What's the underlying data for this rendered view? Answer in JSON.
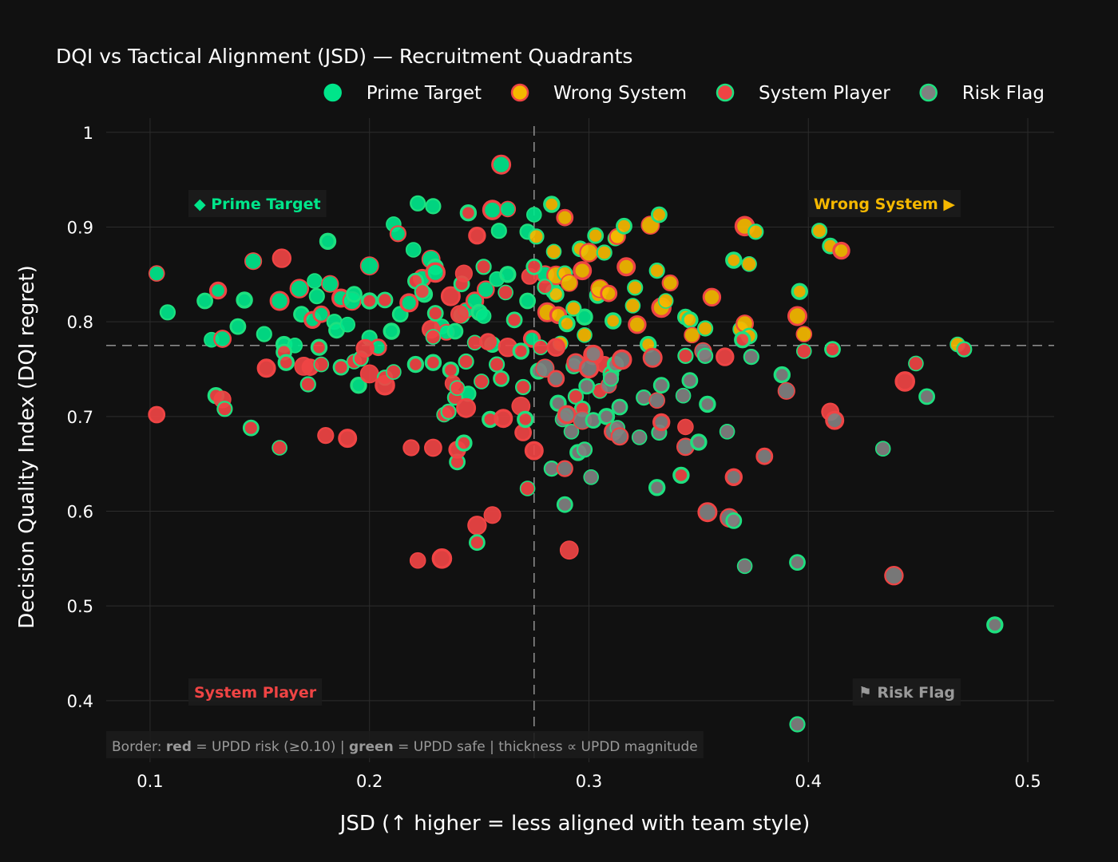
{
  "chart_data": {
    "type": "scatter",
    "title": "DQI vs Tactical Alignment (JSD) — Recruitment Quadrants",
    "xlabel": "JSD  (↑ higher = less aligned with team style)",
    "ylabel": "Decision Quality Index (DQI regret)",
    "xlim": [
      0.08,
      0.512
    ],
    "ylim": [
      0.335,
      1.015
    ],
    "xticks": [
      0.1,
      0.2,
      0.3,
      0.4,
      0.5
    ],
    "xtick_labels": [
      "0.1",
      "0.2",
      "0.3",
      "0.4",
      "0.5"
    ],
    "yticks": [
      0.4,
      0.5,
      0.6,
      0.7,
      0.8,
      0.9,
      1.0
    ],
    "ytick_labels": [
      "0.4",
      "0.5",
      "0.6",
      "0.7",
      "0.8",
      "0.9",
      "1"
    ],
    "grid": true,
    "legend_position": "top-right",
    "thresholds": {
      "x": 0.275,
      "y": 0.775
    },
    "quadrant_labels": [
      {
        "text": "◆ Prime Target",
        "color": "#00e58a",
        "position": "top-left"
      },
      {
        "text": "Wrong System ▶",
        "color": "#f5b800",
        "position": "top-right"
      },
      {
        "text": "System Player",
        "color": "#ef4444",
        "position": "bottom-left"
      },
      {
        "text": "⚑ Risk Flag",
        "color": "#9a9a9a",
        "position": "bottom-right"
      }
    ],
    "footnote": {
      "prefix": "Border: ",
      "red_word": "red",
      "middle": " = UPDD risk (≥0.10) | ",
      "green_word": "green",
      "suffix": " = UPDD safe | thickness ∝ UPDD magnitude"
    },
    "colors": {
      "prime": "#00e58a",
      "wrong": "#f5b800",
      "system": "#ef4444",
      "risk": "#808080",
      "border_risk": "#ef4444",
      "border_safe": "#1ee07f"
    },
    "series": [
      {
        "name": "Prime Target",
        "fill": "#00e58a",
        "points": [
          [
            0.103,
            0.851
          ],
          [
            0.108,
            0.81
          ],
          [
            0.125,
            0.822
          ],
          [
            0.131,
            0.833
          ],
          [
            0.128,
            0.781
          ],
          [
            0.133,
            0.782
          ],
          [
            0.14,
            0.795
          ],
          [
            0.143,
            0.823
          ],
          [
            0.147,
            0.864
          ],
          [
            0.152,
            0.787
          ],
          [
            0.159,
            0.822
          ],
          [
            0.161,
            0.776
          ],
          [
            0.166,
            0.775
          ],
          [
            0.168,
            0.835
          ],
          [
            0.169,
            0.808
          ],
          [
            0.174,
            0.802
          ],
          [
            0.175,
            0.843
          ],
          [
            0.176,
            0.827
          ],
          [
            0.178,
            0.808
          ],
          [
            0.181,
            0.885
          ],
          [
            0.182,
            0.84
          ],
          [
            0.184,
            0.8
          ],
          [
            0.185,
            0.791
          ],
          [
            0.187,
            0.825
          ],
          [
            0.19,
            0.797
          ],
          [
            0.192,
            0.822
          ],
          [
            0.193,
            0.829
          ],
          [
            0.195,
            0.733
          ],
          [
            0.2,
            0.859
          ],
          [
            0.2,
            0.783
          ],
          [
            0.204,
            0.773
          ],
          [
            0.21,
            0.79
          ],
          [
            0.211,
            0.903
          ],
          [
            0.213,
            0.893
          ],
          [
            0.214,
            0.808
          ],
          [
            0.218,
            0.82
          ],
          [
            0.22,
            0.876
          ],
          [
            0.222,
            0.925
          ],
          [
            0.224,
            0.846
          ],
          [
            0.225,
            0.829
          ],
          [
            0.228,
            0.866
          ],
          [
            0.229,
            0.922
          ],
          [
            0.23,
            0.858
          ],
          [
            0.23,
            0.852
          ],
          [
            0.233,
            0.795
          ],
          [
            0.235,
            0.789
          ],
          [
            0.239,
            0.79
          ],
          [
            0.242,
            0.807
          ],
          [
            0.244,
            0.812
          ],
          [
            0.245,
            0.724
          ],
          [
            0.248,
            0.822
          ],
          [
            0.25,
            0.81
          ],
          [
            0.252,
            0.806
          ],
          [
            0.253,
            0.834
          ],
          [
            0.256,
            0.776
          ],
          [
            0.256,
            0.918
          ],
          [
            0.258,
            0.845
          ],
          [
            0.259,
            0.896
          ],
          [
            0.26,
            0.966
          ],
          [
            0.263,
            0.85
          ],
          [
            0.263,
            0.919
          ],
          [
            0.272,
            0.895
          ],
          [
            0.272,
            0.822
          ],
          [
            0.274,
            0.782
          ],
          [
            0.275,
            0.913
          ],
          [
            0.28,
            0.85
          ],
          [
            0.284,
            0.832
          ],
          [
            0.298,
            0.805
          ]
        ]
      },
      {
        "name": "Wrong System",
        "fill": "#f5b800",
        "points": [
          [
            0.276,
            0.89
          ],
          [
            0.281,
            0.81
          ],
          [
            0.283,
            0.924
          ],
          [
            0.284,
            0.874
          ],
          [
            0.285,
            0.849
          ],
          [
            0.285,
            0.829
          ],
          [
            0.286,
            0.807
          ],
          [
            0.287,
            0.777
          ],
          [
            0.289,
            0.851
          ],
          [
            0.289,
            0.91
          ],
          [
            0.29,
            0.798
          ],
          [
            0.291,
            0.841
          ],
          [
            0.293,
            0.814
          ],
          [
            0.296,
            0.877
          ],
          [
            0.297,
            0.854
          ],
          [
            0.298,
            0.786
          ],
          [
            0.3,
            0.873
          ],
          [
            0.303,
            0.891
          ],
          [
            0.304,
            0.828
          ],
          [
            0.305,
            0.835
          ],
          [
            0.307,
            0.873
          ],
          [
            0.309,
            0.83
          ],
          [
            0.311,
            0.801
          ],
          [
            0.312,
            0.888
          ],
          [
            0.313,
            0.89
          ],
          [
            0.316,
            0.901
          ],
          [
            0.317,
            0.858
          ],
          [
            0.32,
            0.817
          ],
          [
            0.321,
            0.836
          ],
          [
            0.322,
            0.797
          ],
          [
            0.327,
            0.776
          ],
          [
            0.328,
            0.902
          ],
          [
            0.331,
            0.854
          ],
          [
            0.332,
            0.913
          ],
          [
            0.333,
            0.815
          ],
          [
            0.335,
            0.822
          ],
          [
            0.337,
            0.841
          ],
          [
            0.344,
            0.805
          ],
          [
            0.346,
            0.802
          ],
          [
            0.347,
            0.786
          ],
          [
            0.353,
            0.793
          ],
          [
            0.356,
            0.826
          ],
          [
            0.366,
            0.865
          ],
          [
            0.369,
            0.792
          ],
          [
            0.371,
            0.798
          ],
          [
            0.373,
            0.785
          ],
          [
            0.371,
            0.901
          ],
          [
            0.373,
            0.861
          ],
          [
            0.376,
            0.895
          ],
          [
            0.395,
            0.806
          ],
          [
            0.396,
            0.832
          ],
          [
            0.398,
            0.787
          ],
          [
            0.405,
            0.896
          ],
          [
            0.41,
            0.88
          ],
          [
            0.415,
            0.875
          ],
          [
            0.468,
            0.776
          ]
        ]
      },
      {
        "name": "System Player",
        "fill": "#ef4444",
        "points": [
          [
            0.103,
            0.702
          ],
          [
            0.13,
            0.722
          ],
          [
            0.133,
            0.718
          ],
          [
            0.134,
            0.708
          ],
          [
            0.146,
            0.688
          ],
          [
            0.153,
            0.751
          ],
          [
            0.159,
            0.667
          ],
          [
            0.16,
            0.867
          ],
          [
            0.161,
            0.768
          ],
          [
            0.162,
            0.757
          ],
          [
            0.17,
            0.753
          ],
          [
            0.172,
            0.734
          ],
          [
            0.173,
            0.752
          ],
          [
            0.177,
            0.773
          ],
          [
            0.178,
            0.755
          ],
          [
            0.18,
            0.68
          ],
          [
            0.187,
            0.752
          ],
          [
            0.19,
            0.677
          ],
          [
            0.193,
            0.758
          ],
          [
            0.196,
            0.761
          ],
          [
            0.198,
            0.772
          ],
          [
            0.2,
            0.822
          ],
          [
            0.2,
            0.745
          ],
          [
            0.207,
            0.741
          ],
          [
            0.207,
            0.823
          ],
          [
            0.207,
            0.733
          ],
          [
            0.211,
            0.747
          ],
          [
            0.219,
            0.667
          ],
          [
            0.221,
            0.843
          ],
          [
            0.221,
            0.755
          ],
          [
            0.222,
            0.548
          ],
          [
            0.224,
            0.832
          ],
          [
            0.228,
            0.792
          ],
          [
            0.229,
            0.757
          ],
          [
            0.229,
            0.784
          ],
          [
            0.229,
            0.667
          ],
          [
            0.23,
            0.809
          ],
          [
            0.233,
            0.55
          ],
          [
            0.234,
            0.702
          ],
          [
            0.236,
            0.705
          ],
          [
            0.237,
            0.827
          ],
          [
            0.237,
            0.749
          ],
          [
            0.238,
            0.735
          ],
          [
            0.239,
            0.72
          ],
          [
            0.24,
            0.652
          ],
          [
            0.24,
            0.665
          ],
          [
            0.24,
            0.73
          ],
          [
            0.241,
            0.808
          ],
          [
            0.242,
            0.84
          ],
          [
            0.243,
            0.672
          ],
          [
            0.243,
            0.851
          ],
          [
            0.244,
            0.758
          ],
          [
            0.244,
            0.709
          ],
          [
            0.245,
            0.915
          ],
          [
            0.248,
            0.778
          ],
          [
            0.249,
            0.585
          ],
          [
            0.249,
            0.567
          ],
          [
            0.249,
            0.891
          ],
          [
            0.251,
            0.737
          ],
          [
            0.252,
            0.858
          ],
          [
            0.254,
            0.779
          ],
          [
            0.255,
            0.697
          ],
          [
            0.256,
            0.596
          ],
          [
            0.258,
            0.755
          ],
          [
            0.26,
            0.74
          ],
          [
            0.261,
            0.698
          ],
          [
            0.262,
            0.831
          ],
          [
            0.263,
            0.773
          ],
          [
            0.266,
            0.802
          ],
          [
            0.269,
            0.769
          ],
          [
            0.269,
            0.711
          ],
          [
            0.27,
            0.731
          ],
          [
            0.27,
            0.683
          ],
          [
            0.271,
            0.697
          ],
          [
            0.272,
            0.624
          ],
          [
            0.273,
            0.848
          ],
          [
            0.275,
            0.858
          ],
          [
            0.275,
            0.664
          ],
          [
            0.278,
            0.773
          ],
          [
            0.28,
            0.837
          ],
          [
            0.285,
            0.773
          ],
          [
            0.289,
            0.7
          ],
          [
            0.291,
            0.559
          ],
          [
            0.294,
            0.721
          ],
          [
            0.297,
            0.708
          ],
          [
            0.302,
            0.765
          ],
          [
            0.305,
            0.727
          ],
          [
            0.307,
            0.755
          ],
          [
            0.31,
            0.745
          ],
          [
            0.342,
            0.638
          ],
          [
            0.344,
            0.689
          ],
          [
            0.344,
            0.764
          ],
          [
            0.362,
            0.763
          ],
          [
            0.37,
            0.781
          ],
          [
            0.398,
            0.769
          ],
          [
            0.41,
            0.705
          ],
          [
            0.411,
            0.771
          ],
          [
            0.444,
            0.737
          ],
          [
            0.449,
            0.756
          ],
          [
            0.471,
            0.771
          ]
        ]
      },
      {
        "name": "Risk Flag",
        "fill": "#808080",
        "points": [
          [
            0.277,
            0.748
          ],
          [
            0.28,
            0.751
          ],
          [
            0.283,
            0.645
          ],
          [
            0.285,
            0.74
          ],
          [
            0.286,
            0.714
          ],
          [
            0.288,
            0.697
          ],
          [
            0.289,
            0.645
          ],
          [
            0.289,
            0.607
          ],
          [
            0.29,
            0.702
          ],
          [
            0.292,
            0.684
          ],
          [
            0.293,
            0.753
          ],
          [
            0.294,
            0.757
          ],
          [
            0.295,
            0.662
          ],
          [
            0.297,
            0.696
          ],
          [
            0.298,
            0.665
          ],
          [
            0.299,
            0.732
          ],
          [
            0.3,
            0.751
          ],
          [
            0.301,
            0.636
          ],
          [
            0.302,
            0.766
          ],
          [
            0.302,
            0.696
          ],
          [
            0.308,
            0.7
          ],
          [
            0.309,
            0.733
          ],
          [
            0.31,
            0.74
          ],
          [
            0.311,
            0.684
          ],
          [
            0.312,
            0.755
          ],
          [
            0.313,
            0.688
          ],
          [
            0.314,
            0.679
          ],
          [
            0.314,
            0.71
          ],
          [
            0.315,
            0.76
          ],
          [
            0.323,
            0.678
          ],
          [
            0.325,
            0.72
          ],
          [
            0.329,
            0.762
          ],
          [
            0.331,
            0.625
          ],
          [
            0.331,
            0.717
          ],
          [
            0.332,
            0.683
          ],
          [
            0.333,
            0.733
          ],
          [
            0.333,
            0.694
          ],
          [
            0.343,
            0.722
          ],
          [
            0.344,
            0.668
          ],
          [
            0.346,
            0.738
          ],
          [
            0.35,
            0.673
          ],
          [
            0.352,
            0.769
          ],
          [
            0.353,
            0.764
          ],
          [
            0.354,
            0.599
          ],
          [
            0.354,
            0.713
          ],
          [
            0.363,
            0.684
          ],
          [
            0.364,
            0.593
          ],
          [
            0.366,
            0.59
          ],
          [
            0.366,
            0.636
          ],
          [
            0.371,
            0.542
          ],
          [
            0.374,
            0.763
          ],
          [
            0.38,
            0.658
          ],
          [
            0.388,
            0.744
          ],
          [
            0.39,
            0.727
          ],
          [
            0.395,
            0.375
          ],
          [
            0.395,
            0.546
          ],
          [
            0.412,
            0.696
          ],
          [
            0.434,
            0.666
          ],
          [
            0.439,
            0.532
          ],
          [
            0.454,
            0.721
          ],
          [
            0.485,
            0.48
          ]
        ]
      }
    ]
  }
}
